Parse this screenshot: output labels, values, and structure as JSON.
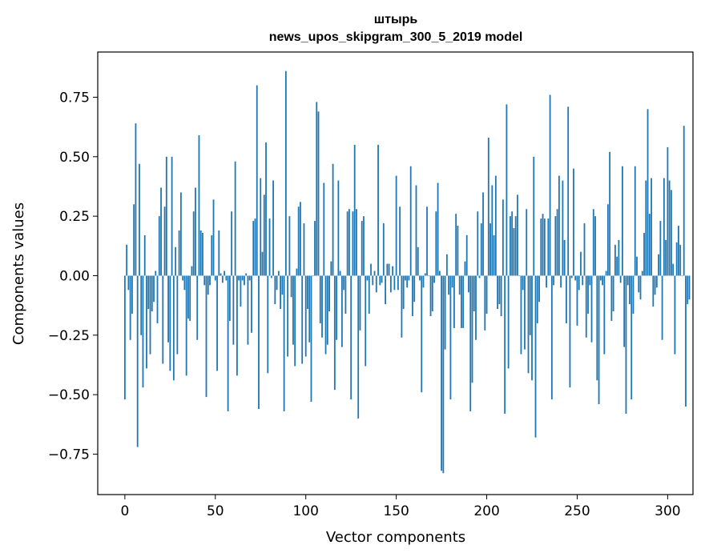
{
  "chart_data": {
    "type": "bar",
    "title_line1": "штырь",
    "title_line2": "news_upos_skipgram_300_5_2019 model",
    "xlabel": "Vector components",
    "ylabel": "Components values",
    "xlim": [
      -15,
      314
    ],
    "ylim": [
      -0.92,
      0.94
    ],
    "xticks": [
      0,
      50,
      100,
      150,
      200,
      250,
      300
    ],
    "xtick_labels": [
      "0",
      "50",
      "100",
      "150",
      "200",
      "250",
      "300"
    ],
    "yticks": [
      -0.75,
      -0.5,
      -0.25,
      0.0,
      0.25,
      0.5,
      0.75
    ],
    "ytick_labels": [
      "−0.75",
      "−0.50",
      "−0.25",
      "0.00",
      "0.25",
      "0.50",
      "0.75"
    ],
    "bar_color": "#1f77b4",
    "values": [
      -0.52,
      0.13,
      -0.06,
      -0.27,
      -0.16,
      0.3,
      0.64,
      -0.72,
      0.47,
      -0.25,
      -0.47,
      0.17,
      -0.39,
      -0.14,
      -0.33,
      -0.15,
      -0.11,
      0.02,
      -0.2,
      0.25,
      0.37,
      -0.37,
      0.29,
      0.5,
      -0.28,
      -0.4,
      0.5,
      -0.44,
      0.12,
      -0.33,
      0.19,
      0.35,
      -0.02,
      -0.06,
      -0.42,
      -0.18,
      -0.19,
      0.04,
      0.27,
      0.37,
      -0.27,
      0.59,
      0.19,
      0.18,
      -0.04,
      -0.51,
      -0.08,
      -0.04,
      0.17,
      0.32,
      -0.02,
      -0.4,
      0.19,
      0.01,
      -0.03,
      0.02,
      -0.02,
      -0.57,
      -0.19,
      0.27,
      -0.29,
      0.48,
      -0.42,
      -0.02,
      -0.13,
      -0.02,
      -0.04,
      0.01,
      -0.29,
      -0.02,
      -0.24,
      0.23,
      0.24,
      0.8,
      -0.56,
      0.41,
      0.1,
      0.34,
      0.56,
      -0.41,
      0.24,
      -0.01,
      0.4,
      -0.12,
      -0.06,
      0.02,
      -0.14,
      -0.08,
      -0.57,
      0.86,
      -0.34,
      0.25,
      -0.09,
      -0.29,
      -0.38,
      0.03,
      0.29,
      0.31,
      -0.37,
      0.22,
      -0.34,
      -0.14,
      -0.28,
      -0.53,
      0.0,
      0.23,
      0.73,
      0.69,
      -0.2,
      -0.26,
      0.39,
      -0.33,
      -0.29,
      -0.15,
      0.06,
      0.47,
      -0.48,
      -0.27,
      0.4,
      0.02,
      -0.3,
      -0.06,
      -0.16,
      0.27,
      0.28,
      -0.52,
      0.27,
      0.55,
      0.28,
      -0.6,
      -0.23,
      0.23,
      0.25,
      -0.38,
      -0.02,
      -0.16,
      0.05,
      -0.04,
      0.02,
      -0.07,
      0.55,
      -0.04,
      -0.03,
      0.22,
      -0.12,
      0.05,
      0.05,
      -0.07,
      0.04,
      -0.06,
      0.42,
      -0.06,
      0.29,
      -0.26,
      -0.14,
      -0.02,
      -0.05,
      -0.02,
      0.46,
      -0.17,
      -0.11,
      0.38,
      0.12,
      -0.02,
      -0.49,
      -0.05,
      0.01,
      0.29,
      0.0,
      -0.17,
      -0.15,
      -0.03,
      0.27,
      0.39,
      0.02,
      -0.82,
      -0.83,
      -0.31,
      0.09,
      -0.08,
      -0.52,
      -0.05,
      -0.22,
      0.26,
      0.21,
      -0.08,
      -0.22,
      -0.22,
      0.06,
      0.17,
      -0.07,
      -0.57,
      -0.45,
      -0.15,
      -0.27,
      0.27,
      -0.01,
      0.22,
      0.35,
      -0.23,
      -0.16,
      0.58,
      0.22,
      0.38,
      0.17,
      0.42,
      -0.14,
      -0.12,
      -0.17,
      0.32,
      -0.58,
      0.72,
      -0.39,
      0.25,
      0.27,
      0.2,
      0.25,
      0.34,
      0.0,
      -0.33,
      -0.06,
      -0.31,
      0.28,
      -0.41,
      -0.25,
      -0.44,
      0.5,
      -0.68,
      -0.2,
      -0.11,
      0.24,
      0.26,
      0.24,
      -0.05,
      0.24,
      0.76,
      -0.52,
      -0.04,
      0.25,
      0.28,
      0.42,
      -0.05,
      0.4,
      0.15,
      -0.2,
      0.71,
      -0.47,
      -0.01,
      0.45,
      -0.02,
      -0.21,
      -0.06,
      0.1,
      -0.04,
      0.22,
      -0.26,
      -0.16,
      -0.04,
      -0.28,
      0.28,
      0.25,
      -0.44,
      -0.54,
      -0.02,
      -0.04,
      -0.33,
      0.02,
      0.3,
      0.52,
      -0.19,
      -0.15,
      0.13,
      0.08,
      0.15,
      -0.03,
      0.46,
      -0.3,
      -0.58,
      -0.04,
      -0.12,
      -0.52,
      -0.16,
      0.46,
      0.08,
      -0.07,
      -0.1,
      0.02,
      0.18,
      0.4,
      0.7,
      0.26,
      0.41,
      -0.13,
      -0.08,
      -0.05,
      0.09,
      0.23,
      -0.27,
      0.41,
      0.15,
      0.54,
      0.4,
      0.36,
      0.05,
      -0.33,
      0.14,
      0.21,
      0.13,
      0.0,
      0.63,
      -0.55,
      -0.12,
      -0.1
    ]
  }
}
